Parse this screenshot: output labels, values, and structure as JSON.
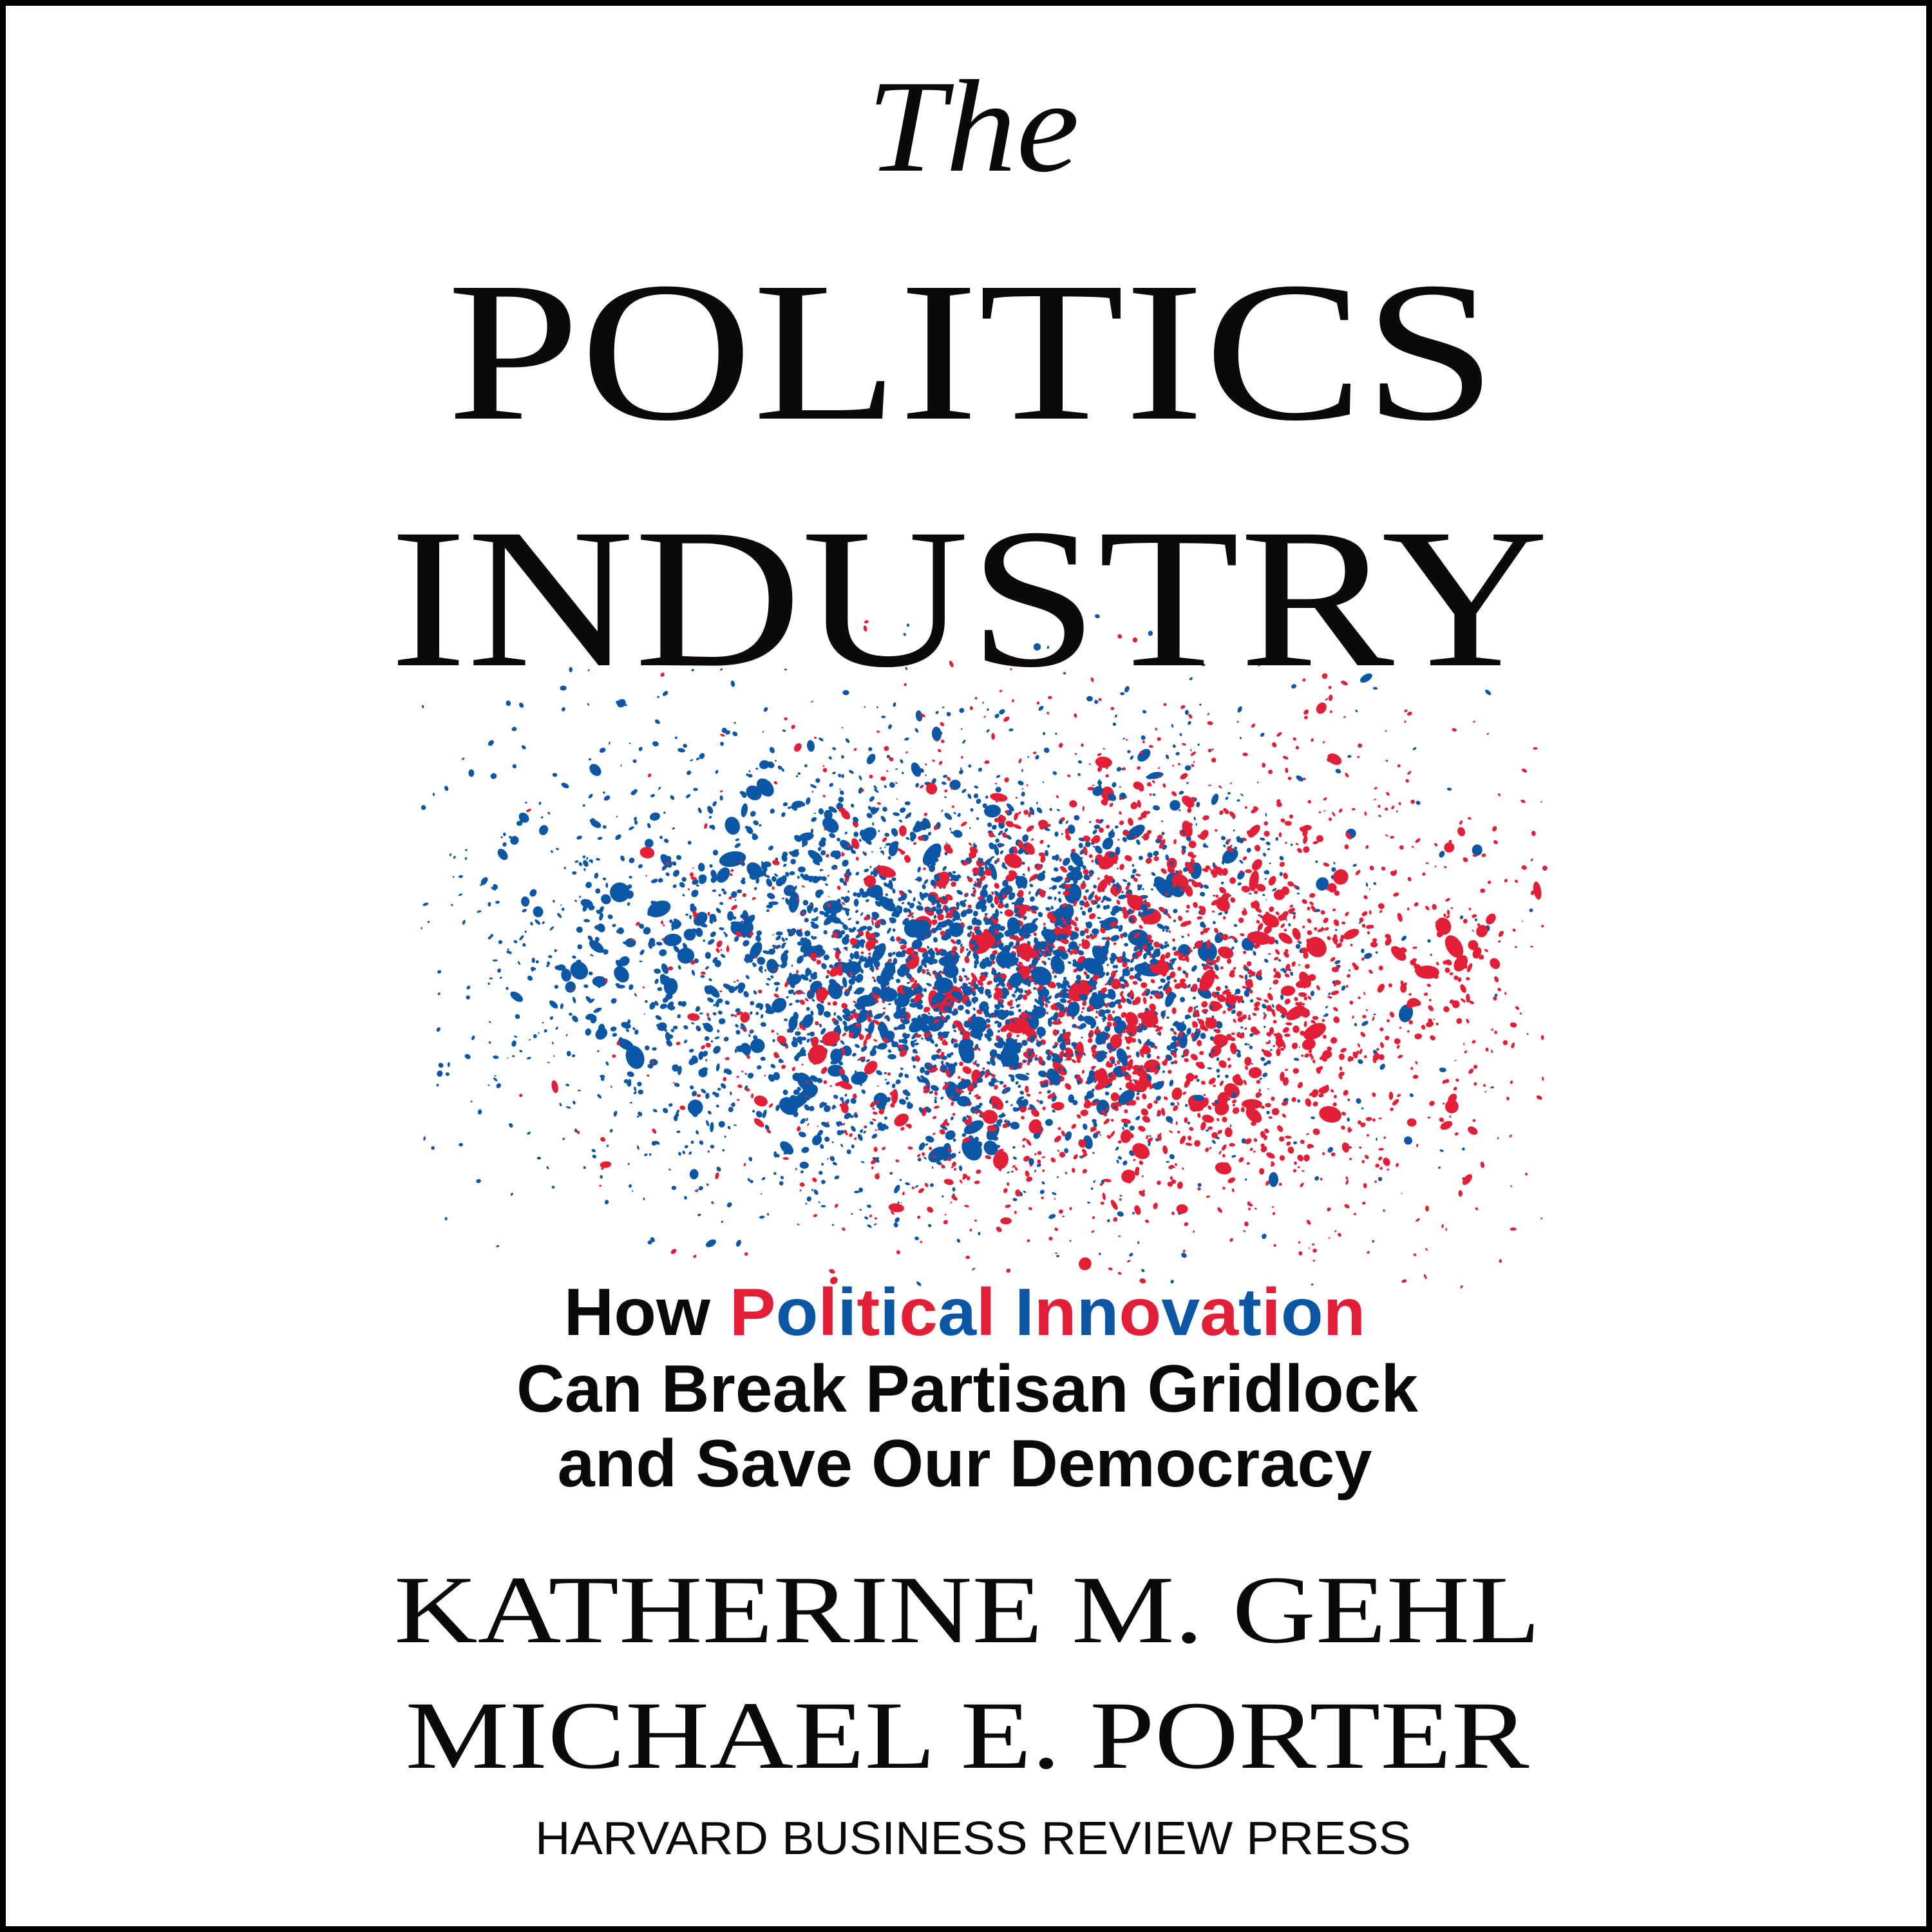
{
  "cover": {
    "title_the": "The",
    "title_line1": "POLITICS",
    "title_line2": "INDUSTRY",
    "subtitle": {
      "line1_prefix": "How",
      "highlight_words": [
        "Political",
        "Innovation"
      ],
      "line2": "Can Break Partisan Gridlock",
      "line3": "and Save Our Democracy"
    },
    "authors": [
      "KATHERINE M. GEHL",
      "MICHAEL E. PORTER"
    ],
    "publisher": "HARVARD BUSINESS REVIEW PRESS"
  },
  "colors": {
    "red": "#e31f37",
    "blue": "#0b56a5",
    "text": "#0a0a0a",
    "border": "#000000",
    "background": "#ffffff"
  }
}
